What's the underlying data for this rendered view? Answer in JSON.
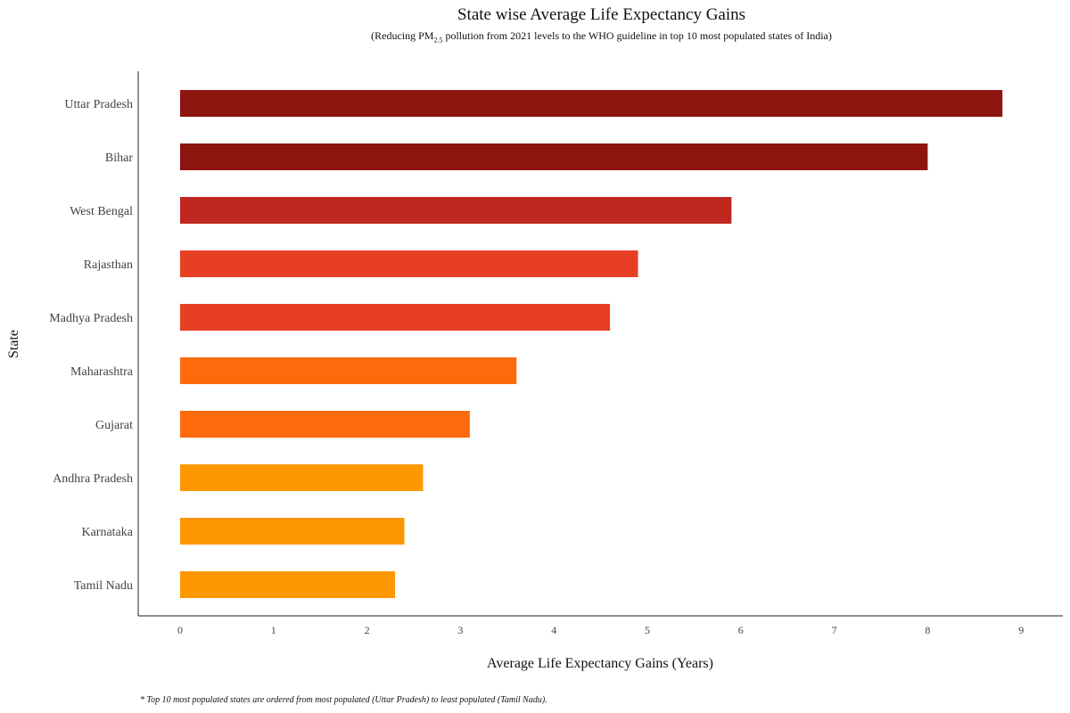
{
  "chart_data": {
    "type": "bar",
    "orientation": "horizontal",
    "title": "State wise Average Life Expectancy Gains",
    "subtitle_prefix": "(Reducing PM",
    "subtitle_subscript": "2.5",
    "subtitle_suffix": " pollution from 2021 levels to the WHO guideline in top 10 most populated states of India)",
    "xlabel": "Average Life Expectancy Gains (Years)",
    "ylabel": "State",
    "xlim": [
      0,
      9
    ],
    "x_ticks": [
      0,
      1,
      2,
      3,
      4,
      5,
      6,
      7,
      8,
      9
    ],
    "grid": false,
    "legend": "none",
    "categories": [
      "Uttar Pradesh",
      "Bihar",
      "West Bengal",
      "Rajasthan",
      "Madhya Pradesh",
      "Maharashtra",
      "Gujarat",
      "Andhra Pradesh",
      "Karnataka",
      "Tamil Nadu"
    ],
    "values": [
      8.8,
      8.0,
      5.9,
      4.9,
      4.6,
      3.6,
      3.1,
      2.6,
      2.4,
      2.3
    ],
    "bar_colors": [
      "#8e1410",
      "#8e1410",
      "#c0271f",
      "#e63f24",
      "#e63f24",
      "#fd6a0c",
      "#fd6a0c",
      "#fd9700",
      "#fd9700",
      "#fd9700"
    ],
    "footnote": "* Top 10 most populated states are ordered from most populated (Uttar Pradesh) to least populated (Tamil Nadu)."
  }
}
